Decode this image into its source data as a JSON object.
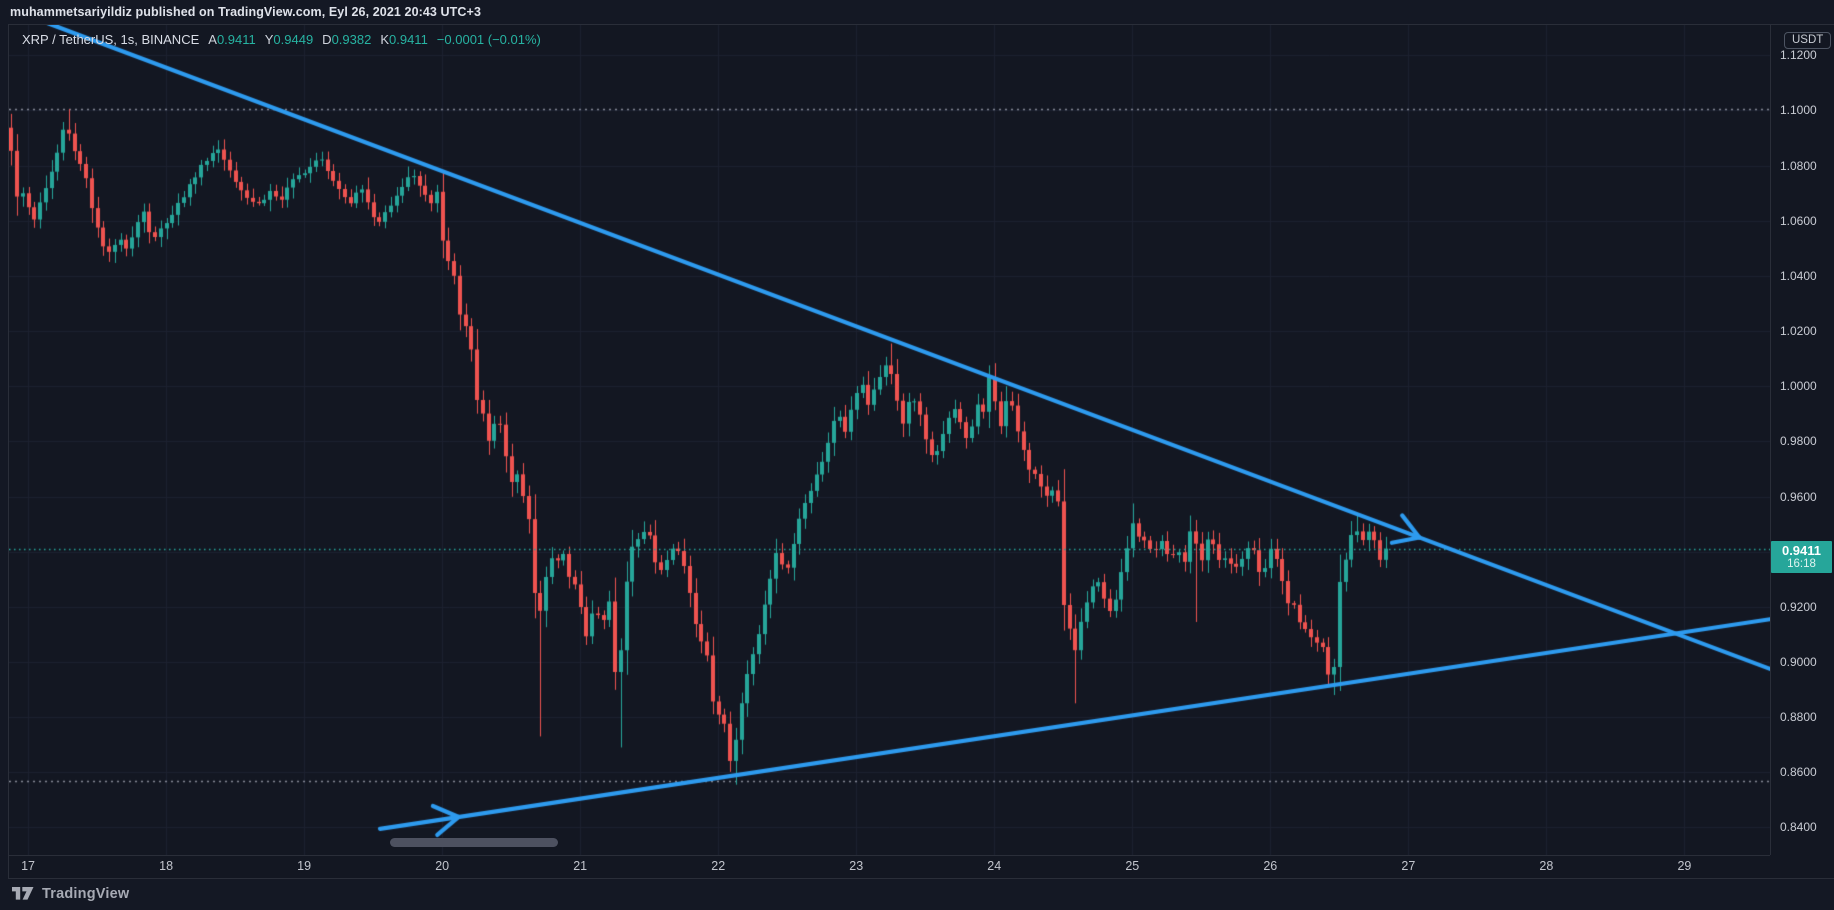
{
  "header": {
    "published_line": "muhammetsariyildiz published on TradingView.com, Eyl 26, 2021 20:43 UTC+3"
  },
  "legend": {
    "symbol": "XRP / TetherUS, 1s, BINANCE",
    "o_label": "A",
    "o_value": "0.9411",
    "h_label": "Y",
    "h_value": "0.9449",
    "l_label": "D",
    "l_value": "0.9382",
    "c_label": "K",
    "c_value": "0.9411",
    "change": "−0.0001 (−0.01%)"
  },
  "price_axis": {
    "currency_badge": "USDT"
  },
  "price_label": {
    "price": "0.9411",
    "countdown": "16:18"
  },
  "footer": {
    "brand": "TradingView"
  },
  "colors": {
    "background": "#131722",
    "grid": "#1c2130",
    "up": "#26a69a",
    "down": "#ef5350",
    "trendline": "#2e9bef",
    "price_line": "#26a69a",
    "dotted_level": "rgba(172,176,189,0.75)",
    "text_up": "#27b3a2"
  },
  "chart_data": {
    "type": "candlestick",
    "title": "XRP / TetherUS, 1s, BINANCE",
    "exchange": "BINANCE",
    "interval": "1 hour (1s = 1 saat)",
    "quote_currency": "USDT",
    "x_domain": [
      16.862,
      29.62
    ],
    "y_domain": [
      0.83,
      1.131
    ],
    "x_tick_values": [
      17,
      18,
      19,
      20,
      21,
      22,
      23,
      24,
      25,
      26,
      27,
      28,
      29
    ],
    "x_tick_labels": [
      "17",
      "18",
      "19",
      "20",
      "21",
      "22",
      "23",
      "24",
      "25",
      "26",
      "27",
      "28",
      "29"
    ],
    "y_grid_values": [
      1.12,
      1.1,
      1.08,
      1.06,
      1.04,
      1.02,
      1.0,
      0.98,
      0.96,
      0.94,
      0.92,
      0.9,
      0.88,
      0.86,
      0.84
    ],
    "y_tick_values": [
      1.12,
      1.1,
      1.08,
      1.06,
      1.04,
      1.02,
      1.0,
      0.98,
      0.96,
      0.92,
      0.9,
      0.88,
      0.86,
      0.84
    ],
    "y_tick_labels": [
      "1.1200",
      "1.1000",
      "1.0800",
      "1.0600",
      "1.0400",
      "1.0200",
      "1.0000",
      "0.9800",
      "0.9600",
      "0.9200",
      "0.9000",
      "0.8800",
      "0.8600",
      "0.8400"
    ],
    "dotted_levels": [
      1.1005,
      0.857
    ],
    "current_price": 0.9411,
    "countdown": "16:18",
    "candle_start": 16.858,
    "candle_interval_days": 0.0416667,
    "candle_count": 240,
    "seed": 1337,
    "path": [
      [
        16.82,
        1.089
      ],
      [
        16.86,
        1.094
      ],
      [
        16.9,
        1.086
      ],
      [
        16.95,
        1.066
      ],
      [
        17.0,
        1.071
      ],
      [
        17.05,
        1.058
      ],
      [
        17.1,
        1.066
      ],
      [
        17.16,
        1.073
      ],
      [
        17.22,
        1.082
      ],
      [
        17.28,
        1.094
      ],
      [
        17.32,
        1.091
      ],
      [
        17.38,
        1.083
      ],
      [
        17.44,
        1.076
      ],
      [
        17.5,
        1.061
      ],
      [
        17.56,
        1.051
      ],
      [
        17.62,
        1.047
      ],
      [
        17.68,
        1.055
      ],
      [
        17.74,
        1.05
      ],
      [
        17.8,
        1.058
      ],
      [
        17.86,
        1.064
      ],
      [
        17.92,
        1.052
      ],
      [
        18.0,
        1.058
      ],
      [
        18.08,
        1.064
      ],
      [
        18.16,
        1.07
      ],
      [
        18.24,
        1.077
      ],
      [
        18.32,
        1.083
      ],
      [
        18.4,
        1.086
      ],
      [
        18.48,
        1.079
      ],
      [
        18.55,
        1.073
      ],
      [
        18.62,
        1.068
      ],
      [
        18.7,
        1.066
      ],
      [
        18.78,
        1.071
      ],
      [
        18.85,
        1.067
      ],
      [
        18.92,
        1.073
      ],
      [
        19.0,
        1.077
      ],
      [
        19.08,
        1.081
      ],
      [
        19.14,
        1.084
      ],
      [
        19.22,
        1.076
      ],
      [
        19.3,
        1.07
      ],
      [
        19.36,
        1.067
      ],
      [
        19.42,
        1.073
      ],
      [
        19.48,
        1.067
      ],
      [
        19.55,
        1.058
      ],
      [
        19.62,
        1.064
      ],
      [
        19.68,
        1.069
      ],
      [
        19.75,
        1.074
      ],
      [
        19.82,
        1.077
      ],
      [
        19.88,
        1.071
      ],
      [
        19.94,
        1.066
      ],
      [
        20.0,
        1.072
      ],
      [
        20.04,
        1.04
      ],
      [
        20.08,
        1.047
      ],
      [
        20.13,
        1.036
      ],
      [
        20.17,
        1.014
      ],
      [
        20.21,
        1.028
      ],
      [
        20.26,
        0.997
      ],
      [
        20.31,
        0.991
      ],
      [
        20.36,
        0.979
      ],
      [
        20.41,
        0.987
      ],
      [
        20.46,
        0.985
      ],
      [
        20.51,
        0.962
      ],
      [
        20.55,
        0.971
      ],
      [
        20.6,
        0.963
      ],
      [
        20.65,
        0.952
      ],
      [
        20.7,
        0.919
      ],
      [
        20.75,
        0.917
      ],
      [
        20.79,
        0.94
      ],
      [
        20.84,
        0.935
      ],
      [
        20.89,
        0.942
      ],
      [
        20.94,
        0.931
      ],
      [
        21.0,
        0.926
      ],
      [
        21.06,
        0.909
      ],
      [
        21.12,
        0.921
      ],
      [
        21.18,
        0.913
      ],
      [
        21.24,
        0.923
      ],
      [
        21.29,
        0.884
      ],
      [
        21.34,
        0.923
      ],
      [
        21.4,
        0.942
      ],
      [
        21.46,
        0.946
      ],
      [
        21.52,
        0.948
      ],
      [
        21.58,
        0.932
      ],
      [
        21.64,
        0.937
      ],
      [
        21.7,
        0.942
      ],
      [
        21.76,
        0.938
      ],
      [
        21.82,
        0.924
      ],
      [
        21.88,
        0.909
      ],
      [
        21.94,
        0.903
      ],
      [
        22.0,
        0.878
      ],
      [
        22.05,
        0.885
      ],
      [
        22.1,
        0.863
      ],
      [
        22.15,
        0.871
      ],
      [
        22.2,
        0.889
      ],
      [
        22.25,
        0.9
      ],
      [
        22.3,
        0.906
      ],
      [
        22.34,
        0.915
      ],
      [
        22.38,
        0.926
      ],
      [
        22.42,
        0.935
      ],
      [
        22.46,
        0.942
      ],
      [
        22.5,
        0.931
      ],
      [
        22.55,
        0.938
      ],
      [
        22.6,
        0.95
      ],
      [
        22.65,
        0.958
      ],
      [
        22.7,
        0.964
      ],
      [
        22.75,
        0.97
      ],
      [
        22.8,
        0.977
      ],
      [
        22.85,
        0.986
      ],
      [
        22.89,
        0.991
      ],
      [
        22.93,
        0.981
      ],
      [
        22.98,
        0.992
      ],
      [
        23.03,
        0.998
      ],
      [
        23.08,
        1.002
      ],
      [
        23.12,
        0.991
      ],
      [
        23.17,
        1.003
      ],
      [
        23.22,
        1.006
      ],
      [
        23.26,
        1.009
      ],
      [
        23.31,
        0.995
      ],
      [
        23.36,
        0.987
      ],
      [
        23.41,
        0.997
      ],
      [
        23.46,
        0.994
      ],
      [
        23.51,
        0.984
      ],
      [
        23.56,
        0.974
      ],
      [
        23.6,
        0.976
      ],
      [
        23.65,
        0.982
      ],
      [
        23.7,
        0.989
      ],
      [
        23.74,
        0.993
      ],
      [
        23.78,
        0.987
      ],
      [
        23.82,
        0.98
      ],
      [
        23.86,
        0.985
      ],
      [
        23.9,
        0.993
      ],
      [
        23.94,
        0.99
      ],
      [
        23.98,
        1.004
      ],
      [
        24.03,
        0.993
      ],
      [
        24.08,
        0.984
      ],
      [
        24.12,
        0.998
      ],
      [
        24.16,
        0.99
      ],
      [
        24.21,
        0.981
      ],
      [
        24.26,
        0.973
      ],
      [
        24.3,
        0.967
      ],
      [
        24.34,
        0.97
      ],
      [
        24.38,
        0.958
      ],
      [
        24.43,
        0.963
      ],
      [
        24.48,
        0.96
      ],
      [
        24.52,
        0.922
      ],
      [
        24.56,
        0.913
      ],
      [
        24.61,
        0.905
      ],
      [
        24.66,
        0.916
      ],
      [
        24.71,
        0.926
      ],
      [
        24.77,
        0.93
      ],
      [
        24.82,
        0.922
      ],
      [
        24.88,
        0.918
      ],
      [
        24.93,
        0.931
      ],
      [
        24.98,
        0.941
      ],
      [
        25.03,
        0.951
      ],
      [
        25.08,
        0.942
      ],
      [
        25.13,
        0.946
      ],
      [
        25.17,
        0.937
      ],
      [
        25.21,
        0.945
      ],
      [
        25.26,
        0.941
      ],
      [
        25.3,
        0.936
      ],
      [
        25.35,
        0.942
      ],
      [
        25.39,
        0.934
      ],
      [
        25.44,
        0.947
      ],
      [
        25.48,
        0.944
      ],
      [
        25.52,
        0.936
      ],
      [
        25.57,
        0.945
      ],
      [
        25.62,
        0.941
      ],
      [
        25.66,
        0.936
      ],
      [
        25.71,
        0.939
      ],
      [
        25.75,
        0.932
      ],
      [
        25.8,
        0.935
      ],
      [
        25.84,
        0.94
      ],
      [
        25.89,
        0.942
      ],
      [
        25.93,
        0.933
      ],
      [
        25.98,
        0.934
      ],
      [
        26.03,
        0.941
      ],
      [
        26.08,
        0.936
      ],
      [
        26.12,
        0.927
      ],
      [
        26.16,
        0.918
      ],
      [
        26.21,
        0.922
      ],
      [
        26.25,
        0.908
      ],
      [
        26.29,
        0.916
      ],
      [
        26.33,
        0.905
      ],
      [
        26.38,
        0.908
      ],
      [
        26.42,
        0.901
      ],
      [
        26.46,
        0.891
      ],
      [
        26.5,
        0.904
      ],
      [
        26.54,
        0.943
      ],
      [
        26.58,
        0.935
      ],
      [
        26.62,
        0.95
      ],
      [
        26.66,
        0.946
      ],
      [
        26.7,
        0.944
      ],
      [
        26.75,
        0.949
      ],
      [
        26.79,
        0.94
      ],
      [
        26.83,
        0.937
      ],
      [
        26.88,
        0.9411
      ]
    ],
    "wick_spikes": [
      {
        "t": 17.28,
        "side": "high",
        "p": 1.1005
      },
      {
        "t": 20.72,
        "side": "low",
        "p": 0.873
      },
      {
        "t": 21.29,
        "side": "low",
        "p": 0.869
      },
      {
        "t": 22.11,
        "side": "low",
        "p": 0.8555
      },
      {
        "t": 23.25,
        "side": "high",
        "p": 1.0155
      },
      {
        "t": 23.97,
        "side": "high",
        "p": 1.0075
      },
      {
        "t": 24.59,
        "side": "low",
        "p": 0.885
      },
      {
        "t": 25.02,
        "side": "high",
        "p": 0.9575
      },
      {
        "t": 25.47,
        "side": "low",
        "p": 0.9145
      },
      {
        "t": 26.45,
        "side": "low",
        "p": 0.888
      },
      {
        "t": 26.62,
        "side": "high",
        "p": 0.954
      }
    ],
    "trendlines": [
      {
        "name": "descending-resistance",
        "x1": 16.99,
        "y1": 1.1345,
        "x2": 29.62,
        "y2": 0.8975,
        "arrow_t": 27.08
      },
      {
        "name": "ascending-support",
        "x1": 19.55,
        "y1": 0.8395,
        "x2": 29.62,
        "y2": 0.9155,
        "arrow_t": 20.12
      }
    ],
    "legend_position": "top-left",
    "grid": true
  }
}
